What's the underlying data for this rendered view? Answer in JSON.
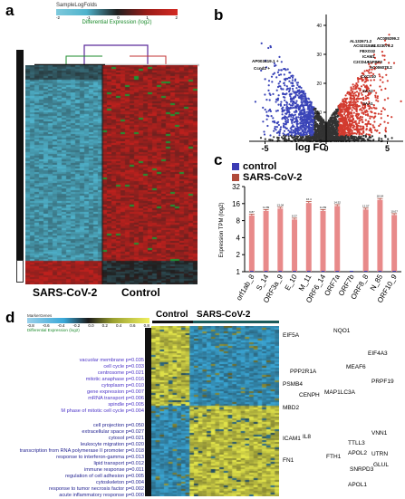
{
  "panel_a": {
    "label": "a",
    "colorbar_title": "SampleLogFolds",
    "colorbar_ticks": [
      "-2",
      "-1",
      "0",
      "1",
      "2"
    ],
    "subtitle": "Differential Expression (log2)",
    "group_left": "SARS-CoV-2",
    "group_right": "Control",
    "colors": {
      "low": "#4fb3cc",
      "mid": "#1f1f1f",
      "high": "#c0201d",
      "sidebar": "#111111"
    }
  },
  "panel_b": {
    "label": "b",
    "xlabel": "log FC",
    "x_ticks": [
      "-5",
      "0",
      "5"
    ],
    "y_ticks": [
      "0",
      "10",
      "20",
      "30",
      "40"
    ],
    "left_labels": [
      "AP003419.1 +",
      "Ccnd2 +"
    ],
    "right_labels": [
      "AC009299.2",
      "AL132671.2",
      "AC023184.2",
      "AL023076.2",
      "FBXO32",
      "ICAM1",
      "IGFBP3",
      "C2CD4A",
      "AC006078.2",
      "CXCL10",
      "SAA2",
      "SAA1"
    ],
    "colors": {
      "down": "#3a44b8",
      "up": "#d23b2f",
      "ns": "#333333"
    }
  },
  "panel_c": {
    "label": "c",
    "legend": [
      "control",
      "SARS-CoV-2"
    ],
    "colors": {
      "control": "#3c3cb4",
      "sars": "#b04a3a",
      "bar": "#e88a8a"
    }
  },
  "chart_data": {
    "type": "bar",
    "categories": [
      "orf1ab_8",
      "S_14",
      "ORF3a_9",
      "E_10",
      "M_11",
      "ORF6_14",
      "ORF7a",
      "ORF7b",
      "ORF8_8",
      "N_85",
      "ORF10_9"
    ],
    "series": [
      {
        "name": "control",
        "values": [
          0,
          0,
          0,
          0,
          0,
          0,
          0,
          0,
          0,
          0,
          0
        ]
      },
      {
        "name": "SARS-CoV-2",
        "values": [
          9.87,
          11.89,
          13.04,
          8.37,
          16.4,
          11.89,
          14.52,
          0,
          12.57,
          18.64,
          10.07
        ]
      }
    ],
    "value_labels": [
      "9.87",
      "11.89",
      "13.04",
      "8.37",
      "16.4",
      "11.89",
      "14.52",
      "",
      "12.57",
      "18.64",
      "10.07"
    ],
    "ylabel": "Expression TPM (log2)",
    "y_ticks": [
      "1",
      "2",
      "4",
      "8",
      "16",
      "32"
    ],
    "scale": "log2",
    "ylim": [
      1,
      32
    ]
  },
  "panel_d": {
    "label": "d",
    "colorbar_title": "MarkerGenes",
    "colorbar_ticks": [
      "-0.8",
      "-0.6",
      "-0.4",
      "-0.2",
      "0.0",
      "0.2",
      "0.4",
      "0.6",
      "0.8"
    ],
    "subtitle": "Differential Expression (log2)",
    "group_left": "Control",
    "group_right": "SARS-CoV-2",
    "go_terms_top": [
      "vacuolar membrane p=0.035",
      "cell cycle p=0.033",
      "centrosome p=0.021",
      "mitotic anaphase p=0.016",
      "cytoplasm p=0.010",
      "gene expression p=0.007",
      "mRNA transport p=0.006",
      "spindle p=0.005",
      "M phase of mitotic cell cycle p=0.004"
    ],
    "go_terms_bottom": [
      "cell projection p=0.050",
      "extracellular space p=0.027",
      "cytosol p=0.021",
      "leukocyte migration p=0.020",
      "transcription from RNA polymerase II promoter p=0.018",
      "response to interferon-gamma p=0.013",
      "lipid transport p=0.012",
      "immune response p=0.011",
      "regulation of cell adhesion p=0.005",
      "cytoskeleton p=0.004",
      "response to tumor necrosis factor p=0.002",
      "acute inflammatory response p=0.000"
    ],
    "genes": [
      "NQO1",
      "EIF5A",
      "EIF4A3",
      "MEAF6",
      "PPP2R1A",
      "PRPF19",
      "PSMB4",
      "CENPH",
      "MAP1LC3A",
      "MBD2",
      "VNN1",
      "TTLL3",
      "ICAM1",
      "IL8",
      "UTRN",
      "APOL2",
      "FTH1",
      "GLUL",
      "FN1",
      "SNRPD3",
      "APOL1"
    ],
    "colors": {
      "low": "#3aa8d8",
      "mid": "#1a1a1a",
      "high": "#e6e84a",
      "sidebar": "#111111"
    }
  }
}
